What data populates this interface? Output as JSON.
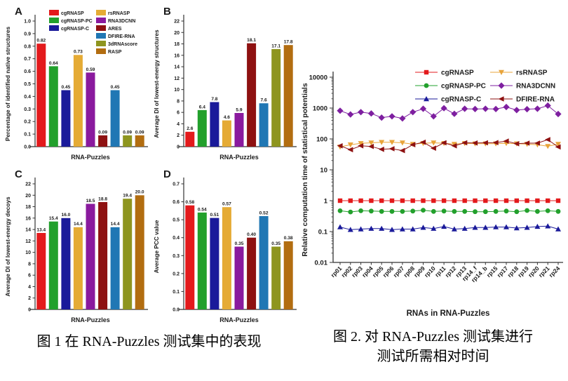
{
  "captions": {
    "figure1": "图 1 在 RNA-Puzzles 测试集中的表现",
    "figure2_line1": "图 2. 对 RNA-Puzzles 测试集进行",
    "figure2_line2": "测试所需相对时间"
  },
  "chart_data": [
    {
      "id": "panelA",
      "type": "bar",
      "panel": "A",
      "categories": [
        "cgRNASP",
        "cgRNASP-PC",
        "cgRNASP-C",
        "rsRNASP",
        "RNA3DCNN",
        "ARES",
        "DFIRE-RNA",
        "3dRNAscore",
        "RASP"
      ],
      "colors": [
        "#e31a1c",
        "#22a02c",
        "#1a1a9a",
        "#e5ab35",
        "#8a1a9e",
        "#8e1111",
        "#2077b4",
        "#8e951f",
        "#b26d10"
      ],
      "values": [
        0.82,
        0.64,
        0.45,
        0.73,
        0.59,
        0.09,
        0.45,
        0.09,
        0.09
      ],
      "ylabel": "Percentage of identified native structures",
      "xlabel": "RNA-Puzzles",
      "ymax": 1.0,
      "ytick_step": 0.1,
      "ytick_decimals": 1,
      "label_decimals": 2,
      "legend_columns": [
        [
          "cgRNASP",
          "cgRNASP-PC",
          "cgRNASP-C"
        ],
        [
          "rsRNASP",
          "RNA3DCNN",
          "ARES",
          "DFIRE-RNA",
          "3dRNAscore",
          "RASP"
        ]
      ]
    },
    {
      "id": "panelB",
      "type": "bar",
      "panel": "B",
      "categories": [
        "cgRNASP",
        "cgRNASP-PC",
        "cgRNASP-C",
        "rsRNASP",
        "RNA3DCNN",
        "ARES",
        "DFIRE-RNA",
        "3dRNAscore",
        "RASP"
      ],
      "colors": [
        "#e31a1c",
        "#22a02c",
        "#1a1a9a",
        "#e5ab35",
        "#8a1a9e",
        "#8e1111",
        "#2077b4",
        "#8e951f",
        "#b26d10"
      ],
      "values": [
        2.6,
        6.4,
        7.8,
        4.6,
        5.9,
        18.1,
        7.6,
        17.1,
        17.8
      ],
      "ylabel": "Average DI of lowest-energy structures",
      "xlabel": "RNA-Puzzles",
      "ymax": 22,
      "ytick_step": 2,
      "ytick_decimals": 0,
      "label_decimals": 1
    },
    {
      "id": "panelC",
      "type": "bar",
      "panel": "C",
      "categories": [
        "cgRNASP",
        "cgRNASP-PC",
        "cgRNASP-C",
        "rsRNASP",
        "RNA3DCNN",
        "ARES",
        "DFIRE-RNA",
        "3dRNAscore",
        "RASP"
      ],
      "colors": [
        "#e31a1c",
        "#22a02c",
        "#1a1a9a",
        "#e5ab35",
        "#8a1a9e",
        "#8e1111",
        "#2077b4",
        "#8e951f",
        "#b26d10"
      ],
      "values": [
        13.4,
        15.4,
        16.0,
        14.4,
        18.5,
        18.8,
        14.4,
        19.4,
        20.0
      ],
      "ylabel": "Average DI of lowest-energy decoys",
      "xlabel": "RNA-Puzzles",
      "ymax": 22,
      "ytick_step": 2,
      "ytick_decimals": 0,
      "label_decimals": 1
    },
    {
      "id": "panelD",
      "type": "bar",
      "panel": "D",
      "categories": [
        "cgRNASP",
        "cgRNASP-PC",
        "cgRNASP-C",
        "rsRNASP",
        "RNA3DCNN",
        "ARES",
        "DFIRE-RNA",
        "3dRNAscore",
        "RASP"
      ],
      "colors": [
        "#e31a1c",
        "#22a02c",
        "#1a1a9a",
        "#e5ab35",
        "#8a1a9e",
        "#8e1111",
        "#2077b4",
        "#8e951f",
        "#b26d10"
      ],
      "values": [
        0.58,
        0.54,
        0.51,
        0.57,
        0.35,
        0.4,
        0.52,
        0.35,
        0.38
      ],
      "ylabel": "Average PCC value",
      "xlabel": "RNA-Puzzles",
      "ymax": 0.7,
      "ytick_step": 0.1,
      "ytick_decimals": 1,
      "label_decimals": 2
    },
    {
      "id": "fig2chart",
      "type": "line",
      "ylabel": "Relative computation time of statistical potentials",
      "xlabel": "RNAs in RNA-Puzzles",
      "yscale": "log",
      "ylim": [
        0.01,
        10000
      ],
      "yticks": [
        "10000",
        "1000",
        "100",
        "10",
        "1",
        "0.1",
        "0.01"
      ],
      "categories": [
        "rp01",
        "rp02",
        "rp03",
        "rp04",
        "rp05",
        "rp06",
        "rp07",
        "rp08",
        "rp09",
        "rp10",
        "rp11",
        "rp12",
        "rp13",
        "rp14_f",
        "rp14_b",
        "rp15",
        "rp17",
        "rp18",
        "rp19",
        "rp20",
        "rp21",
        "rp24"
      ],
      "legend_columns": [
        [
          "cgRNASP",
          "cgRNASP-PC",
          "cgRNASP-C"
        ],
        [
          "rsRNASP",
          "RNA3DCNN",
          "DFIRE-RNA"
        ]
      ],
      "series": [
        {
          "name": "cgRNASP",
          "color": "#e31a1c",
          "marker": "square",
          "values": [
            1,
            1,
            1,
            1,
            1,
            1,
            1,
            1,
            1,
            1,
            1,
            1,
            1,
            1,
            1,
            1,
            1,
            1,
            1,
            1,
            1,
            1
          ]
        },
        {
          "name": "cgRNASP-PC",
          "color": "#22a02c",
          "marker": "circle",
          "values": [
            0.47,
            0.43,
            0.47,
            0.46,
            0.45,
            0.45,
            0.45,
            0.46,
            0.49,
            0.45,
            0.46,
            0.45,
            0.45,
            0.44,
            0.44,
            0.45,
            0.46,
            0.44,
            0.48,
            0.45,
            0.47,
            0.45
          ]
        },
        {
          "name": "cgRNASP-C",
          "color": "#1a1a9a",
          "marker": "triangle-up",
          "values": [
            0.14,
            0.115,
            0.12,
            0.125,
            0.125,
            0.115,
            0.12,
            0.12,
            0.135,
            0.125,
            0.145,
            0.12,
            0.125,
            0.135,
            0.135,
            0.14,
            0.14,
            0.13,
            0.135,
            0.145,
            0.15,
            0.12
          ]
        },
        {
          "name": "rsRNASP",
          "color": "#e8a43a",
          "marker": "triangle-down",
          "values": [
            55,
            65,
            72,
            75,
            78,
            78,
            75,
            68,
            72,
            75,
            72,
            68,
            72,
            70,
            70,
            70,
            72,
            70,
            68,
            65,
            58,
            68
          ]
        },
        {
          "name": "RNA3DCNN",
          "color": "#7e1fa0",
          "marker": "diamond",
          "values": [
            820,
            620,
            740,
            670,
            490,
            540,
            460,
            740,
            950,
            540,
            990,
            650,
            950,
            930,
            950,
            930,
            1080,
            860,
            920,
            950,
            1200,
            640
          ]
        },
        {
          "name": "DFIRE-RNA",
          "color": "#8e1111",
          "marker": "triangle-left",
          "values": [
            60,
            45,
            60,
            57,
            46,
            48,
            42,
            65,
            78,
            50,
            75,
            60,
            75,
            74,
            75,
            76,
            85,
            70,
            73,
            73,
            95,
            55
          ]
        }
      ]
    }
  ]
}
